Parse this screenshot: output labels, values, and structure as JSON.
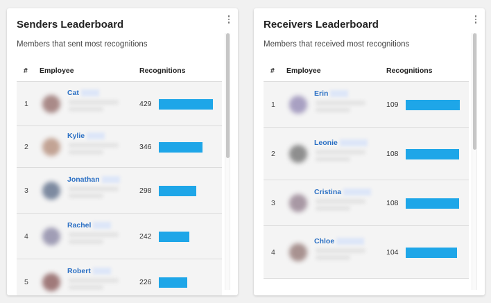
{
  "senders": {
    "title": "Senders Leaderboard",
    "subtitle": "Members that sent most recognitions",
    "columns": {
      "rank": "#",
      "employee": "Employee",
      "recognitions": "Recognitions"
    },
    "bar_color": "#1ea6e8",
    "rows": [
      {
        "rank": "1",
        "name": "Cat",
        "count": "429",
        "fraction": 1.0,
        "avatar_color": "#a98a88"
      },
      {
        "rank": "2",
        "name": "Kylie",
        "count": "346",
        "fraction": 0.807,
        "avatar_color": "#c2a394"
      },
      {
        "rank": "3",
        "name": "Jonathan",
        "count": "298",
        "fraction": 0.695,
        "avatar_color": "#7d8aa0"
      },
      {
        "rank": "4",
        "name": "Rachel",
        "count": "242",
        "fraction": 0.564,
        "avatar_color": "#a09db5"
      },
      {
        "rank": "5",
        "name": "Robert",
        "count": "226",
        "fraction": 0.527,
        "avatar_color": "#a07a7a"
      }
    ]
  },
  "receivers": {
    "title": "Receivers Leaderboard",
    "subtitle": "Members that received most recognitions",
    "columns": {
      "rank": "#",
      "employee": "Employee",
      "recognitions": "Recognitions"
    },
    "bar_color": "#1ea6e8",
    "rows": [
      {
        "rank": "1",
        "name": "Erin",
        "count": "109",
        "fraction": 1.0,
        "avatar_color": "#a8a0c2"
      },
      {
        "rank": "2",
        "name": "Leonie",
        "count": "108",
        "fraction": 0.991,
        "avatar_color": "#8e8e8e"
      },
      {
        "rank": "3",
        "name": "Cristina",
        "count": "108",
        "fraction": 0.991,
        "avatar_color": "#a898a4"
      },
      {
        "rank": "4",
        "name": "Chloe",
        "count": "104",
        "fraction": 0.954,
        "avatar_color": "#a89290"
      }
    ]
  }
}
